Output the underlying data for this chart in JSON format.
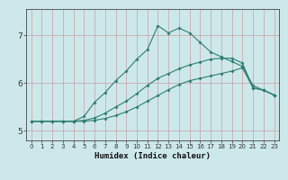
{
  "x_values": [
    0,
    1,
    2,
    3,
    4,
    5,
    6,
    7,
    8,
    9,
    10,
    11,
    12,
    13,
    14,
    15,
    16,
    17,
    18,
    19,
    20,
    21,
    22,
    23
  ],
  "line1": [
    5.2,
    5.2,
    5.2,
    5.2,
    5.2,
    5.3,
    5.6,
    5.8,
    6.05,
    6.25,
    6.5,
    6.7,
    7.2,
    7.05,
    7.15,
    7.05,
    6.85,
    6.65,
    6.55,
    6.45,
    6.35,
    5.95,
    5.85,
    5.75
  ],
  "line2": [
    5.2,
    5.2,
    5.2,
    5.2,
    5.2,
    5.22,
    5.27,
    5.37,
    5.5,
    5.62,
    5.78,
    5.95,
    6.1,
    6.2,
    6.3,
    6.38,
    6.44,
    6.5,
    6.52,
    6.52,
    6.42,
    5.9,
    5.85,
    5.75
  ],
  "line3": [
    5.2,
    5.2,
    5.2,
    5.2,
    5.2,
    5.2,
    5.22,
    5.26,
    5.32,
    5.4,
    5.5,
    5.62,
    5.74,
    5.86,
    5.97,
    6.05,
    6.1,
    6.15,
    6.2,
    6.25,
    6.32,
    5.9,
    5.85,
    5.75
  ],
  "bg_color": "#cde8ea",
  "line_color": "#2e7d70",
  "grid_color_v": "#c8a0a0",
  "grid_color_h": "#c8a0a0",
  "xlabel": "Humidex (Indice chaleur)",
  "xlim": [
    -0.5,
    23.5
  ],
  "ylim": [
    4.8,
    7.55
  ],
  "yticks": [
    5,
    6,
    7
  ],
  "xtick_labels": [
    "0",
    "1",
    "2",
    "3",
    "4",
    "5",
    "6",
    "7",
    "8",
    "9",
    "10",
    "11",
    "12",
    "13",
    "14",
    "15",
    "16",
    "17",
    "18",
    "19",
    "20",
    "21",
    "22",
    "23"
  ]
}
